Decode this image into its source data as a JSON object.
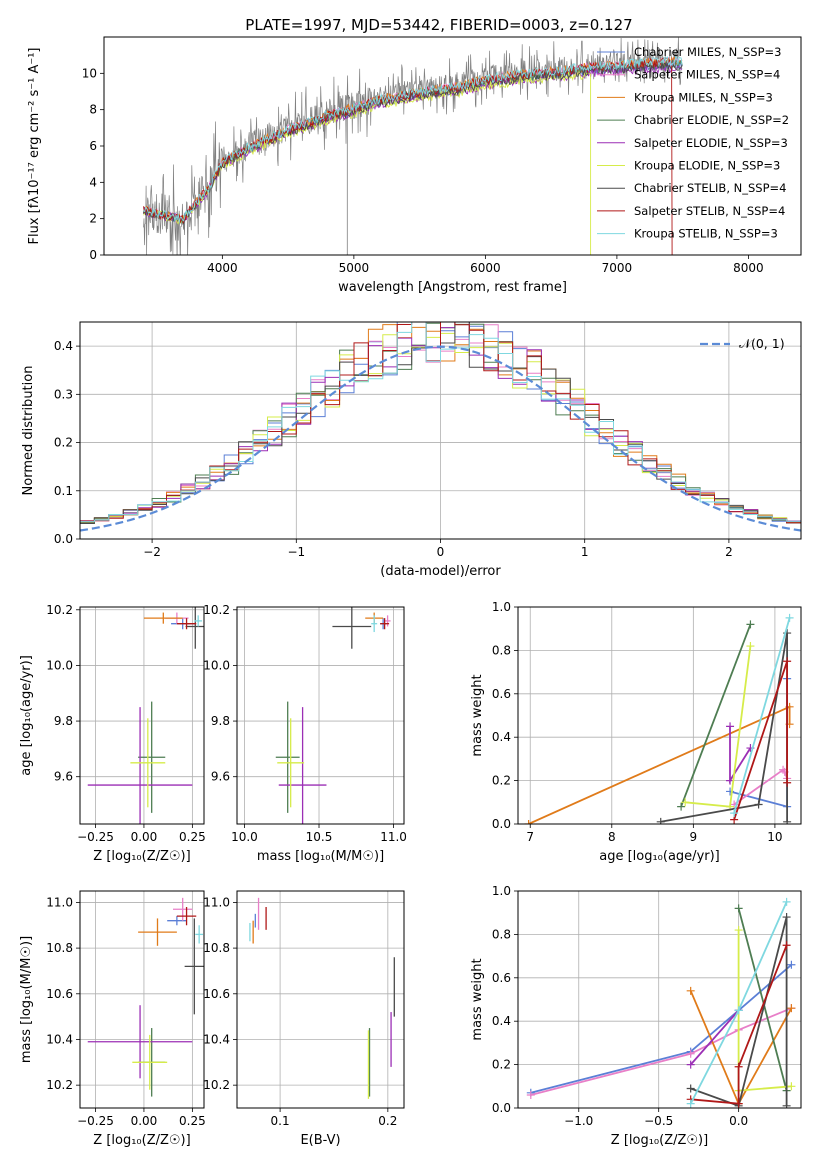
{
  "page_title": "PLATE=1997, MJD=53442, FIBERID=0003, z=0.127",
  "colors": {
    "Chabrier MILES": "#5b7fd6",
    "Salpeter MILES": "#e87fc8",
    "Kroupa MILES": "#e07b1a",
    "Chabrier ELODIE": "#4e7d52",
    "Salpeter ELODIE": "#9b2fb5",
    "Kroupa ELODIE": "#d6ec4a",
    "Chabrier STELIB": "#4a4a4a",
    "Salpeter STELIB": "#b01818",
    "Kroupa STELIB": "#7fd8e0",
    "data": "#808080",
    "normal": "#5b8bd6"
  },
  "chart_data": [
    {
      "id": "spectrum",
      "type": "line",
      "title": "PLATE=1997, MJD=53442, FIBERID=0003, z=0.127",
      "xlabel": "wavelength [Angstrom, rest frame]",
      "ylabel": "Flux [fλ10⁻¹⁷ erg cm⁻² s⁻¹ A⁻¹]",
      "xlim": [
        3100,
        8400
      ],
      "ylim": [
        0,
        12
      ],
      "xticks": [
        4000,
        5000,
        6000,
        7000,
        8000
      ],
      "yticks": [
        0,
        2,
        4,
        6,
        8,
        10
      ],
      "grid": false,
      "legend_position": "right",
      "legend": [
        "Chabrier MILES, N_SSP=3",
        "Salpeter MILES, N_SSP=4",
        "Kroupa MILES, N_SSP=3",
        "Chabrier ELODIE, N_SSP=2",
        "Salpeter ELODIE, N_SSP=3",
        "Kroupa ELODIE, N_SSP=3",
        "Chabrier STELIB, N_SSP=4",
        "Salpeter STELIB, N_SSP=4",
        "Kroupa STELIB, N_SSP=3"
      ],
      "continuum_x": [
        3400,
        3700,
        3900,
        4000,
        4200,
        4500,
        4800,
        5000,
        5200,
        5500,
        5800,
        6000,
        6300,
        6600,
        6800,
        7000,
        7200,
        7400,
        7500
      ],
      "continuum_y": [
        2.5,
        2.0,
        3.8,
        5.2,
        6.0,
        7.0,
        7.8,
        8.2,
        8.7,
        9.1,
        9.4,
        9.8,
        10.1,
        10.3,
        10.5,
        10.6,
        10.7,
        10.8,
        10.8
      ]
    },
    {
      "id": "residuals",
      "type": "line",
      "xlabel": "(data-model)/error",
      "ylabel": "Normed distribution",
      "xlim": [
        -2.5,
        2.5
      ],
      "ylim": [
        0,
        0.45
      ],
      "xticks": [
        -2,
        -1,
        0,
        1,
        2
      ],
      "yticks": [
        0.0,
        0.1,
        0.2,
        0.3,
        0.4
      ],
      "grid": true,
      "legend_position": "upper-right",
      "legend": [
        "𝒩(0, 1)"
      ],
      "normal_mean": 0,
      "normal_sigma": 1,
      "hist_bin_width": 0.1,
      "hist_bins": 50
    },
    {
      "id": "age-vs-Z",
      "type": "scatter",
      "xlabel": "Z [log₁₀(Z/Z☉)]",
      "ylabel": "age  [log₁₀(age/yr)]",
      "xlim": [
        -0.33,
        0.31
      ],
      "ylim": [
        9.43,
        10.21
      ],
      "xticks": [
        -0.25,
        0.0,
        0.25
      ],
      "yticks": [
        9.6,
        9.8,
        10.0,
        10.2
      ],
      "grid": true,
      "points": [
        {
          "model": "Chabrier MILES",
          "x": 0.2,
          "y": 10.15,
          "xerr": 0.06,
          "yerr": 0.02
        },
        {
          "model": "Salpeter MILES",
          "x": 0.17,
          "y": 10.17,
          "xerr": 0.06,
          "yerr": 0.02
        },
        {
          "model": "Kroupa MILES",
          "x": 0.1,
          "y": 10.17,
          "xerr": 0.1,
          "yerr": 0.02
        },
        {
          "model": "Chabrier ELODIE",
          "x": 0.04,
          "y": 9.67,
          "xerr": 0.07,
          "yerr": 0.2
        },
        {
          "model": "Salpeter ELODIE",
          "x": -0.02,
          "y": 9.57,
          "xerr": 0.27,
          "yerr": 0.28
        },
        {
          "model": "Kroupa ELODIE",
          "x": 0.02,
          "y": 9.65,
          "xerr": 0.09,
          "yerr": 0.16
        },
        {
          "model": "Chabrier STELIB",
          "x": 0.265,
          "y": 10.14,
          "xerr": 0.05,
          "yerr": 0.08
        },
        {
          "model": "Salpeter STELIB",
          "x": 0.22,
          "y": 10.15,
          "xerr": 0.05,
          "yerr": 0.02
        },
        {
          "model": "Kroupa STELIB",
          "x": 0.28,
          "y": 10.16,
          "xerr": 0.02,
          "yerr": 0.02
        }
      ]
    },
    {
      "id": "age-vs-mass",
      "type": "scatter",
      "xlabel": "mass [log₁₀(M/M☉)]",
      "ylabel": "",
      "xlim": [
        9.95,
        11.07
      ],
      "ylim": [
        9.43,
        10.21
      ],
      "xticks": [
        10.0,
        10.5,
        11.0
      ],
      "yticks": [
        9.6,
        9.8,
        10.0,
        10.2
      ],
      "grid": true,
      "points": [
        {
          "model": "Chabrier MILES",
          "x": 10.93,
          "y": 10.15,
          "xerr": 0.02,
          "yerr": 0.02
        },
        {
          "model": "Salpeter MILES",
          "x": 10.96,
          "y": 10.16,
          "xerr": 0.02,
          "yerr": 0.02
        },
        {
          "model": "Kroupa MILES",
          "x": 10.87,
          "y": 10.17,
          "xerr": 0.06,
          "yerr": 0.02
        },
        {
          "model": "Chabrier ELODIE",
          "x": 10.29,
          "y": 9.67,
          "xerr": 0.08,
          "yerr": 0.2
        },
        {
          "model": "Salpeter ELODIE",
          "x": 10.39,
          "y": 9.57,
          "xerr": 0.16,
          "yerr": 0.28
        },
        {
          "model": "Kroupa ELODIE",
          "x": 10.31,
          "y": 9.65,
          "xerr": 0.09,
          "yerr": 0.16
        },
        {
          "model": "Chabrier STELIB",
          "x": 10.72,
          "y": 10.14,
          "xerr": 0.13,
          "yerr": 0.08
        },
        {
          "model": "Salpeter STELIB",
          "x": 10.94,
          "y": 10.15,
          "xerr": 0.03,
          "yerr": 0.02
        },
        {
          "model": "Kroupa STELIB",
          "x": 10.87,
          "y": 10.15,
          "xerr": 0.02,
          "yerr": 0.03
        }
      ]
    },
    {
      "id": "massweight-vs-age",
      "type": "line",
      "xlabel": "age  [log₁₀(age/yr)]",
      "ylabel": "mass weight",
      "xlim": [
        6.85,
        10.32
      ],
      "ylim": [
        0,
        1
      ],
      "xticks": [
        7,
        8,
        9,
        10
      ],
      "yticks": [
        0.0,
        0.2,
        0.4,
        0.6,
        0.8,
        1.0
      ],
      "grid": true,
      "series": [
        {
          "model": "Chabrier MILES",
          "x": [
            9.45,
            10.15,
            10.15
          ],
          "y": [
            0.15,
            0.08,
            0.67
          ]
        },
        {
          "model": "Salpeter MILES",
          "x": [
            9.5,
            10.1,
            10.12,
            10.15
          ],
          "y": [
            0.09,
            0.25,
            0.24,
            0.21
          ]
        },
        {
          "model": "Kroupa MILES",
          "x": [
            6.98,
            10.18,
            10.18
          ],
          "y": [
            0.0,
            0.54,
            0.46
          ]
        },
        {
          "model": "Chabrier ELODIE",
          "x": [
            8.85,
            9.7
          ],
          "y": [
            0.08,
            0.92
          ]
        },
        {
          "model": "Salpeter ELODIE",
          "x": [
            9.45,
            9.45,
            9.7
          ],
          "y": [
            0.45,
            0.2,
            0.35
          ]
        },
        {
          "model": "Kroupa ELODIE",
          "x": [
            8.9,
            9.45,
            9.7
          ],
          "y": [
            0.1,
            0.08,
            0.82
          ]
        },
        {
          "model": "Chabrier STELIB",
          "x": [
            8.6,
            9.8,
            10.15,
            10.15
          ],
          "y": [
            0.01,
            0.09,
            0.88,
            0.01
          ]
        },
        {
          "model": "Salpeter STELIB",
          "x": [
            9.5,
            10.15,
            10.15
          ],
          "y": [
            0.02,
            0.75,
            0.19
          ]
        },
        {
          "model": "Kroupa STELIB",
          "x": [
            9.5,
            10.18
          ],
          "y": [
            0.05,
            0.95
          ]
        }
      ]
    },
    {
      "id": "mass-vs-Z",
      "type": "scatter",
      "xlabel": "Z [log₁₀(Z/Z☉)]",
      "ylabel": "mass [log₁₀(M/M☉)]",
      "xlim": [
        -0.33,
        0.31
      ],
      "ylim": [
        10.1,
        11.05
      ],
      "xticks": [
        -0.25,
        0.0,
        0.25
      ],
      "yticks": [
        10.2,
        10.4,
        10.6,
        10.8,
        11.0
      ],
      "grid": true,
      "points": [
        {
          "model": "Chabrier MILES",
          "x": 0.17,
          "y": 10.92,
          "xerr": 0.05,
          "yerr": 0.02
        },
        {
          "model": "Salpeter MILES",
          "x": 0.2,
          "y": 10.97,
          "xerr": 0.05,
          "yerr": 0.05
        },
        {
          "model": "Kroupa MILES",
          "x": 0.07,
          "y": 10.87,
          "xerr": 0.1,
          "yerr": 0.06
        },
        {
          "model": "Chabrier ELODIE",
          "x": 0.04,
          "y": 10.3,
          "xerr": 0.07,
          "yerr": 0.15
        },
        {
          "model": "Salpeter ELODIE",
          "x": -0.02,
          "y": 10.39,
          "xerr": 0.27,
          "yerr": 0.16
        },
        {
          "model": "Kroupa ELODIE",
          "x": 0.03,
          "y": 10.3,
          "xerr": 0.09,
          "yerr": 0.12
        },
        {
          "model": "Chabrier STELIB",
          "x": 0.26,
          "y": 10.72,
          "xerr": 0.05,
          "yerr": 0.21
        },
        {
          "model": "Salpeter STELIB",
          "x": 0.22,
          "y": 10.94,
          "xerr": 0.05,
          "yerr": 0.04
        },
        {
          "model": "Kroupa STELIB",
          "x": 0.285,
          "y": 10.86,
          "xerr": 0.02,
          "yerr": 0.04
        }
      ]
    },
    {
      "id": "mass-vs-ebv",
      "type": "scatter",
      "xlabel": "E(B-V)",
      "ylabel": "",
      "xlim": [
        0.06,
        0.215
      ],
      "ylim": [
        10.1,
        11.05
      ],
      "xticks": [
        0.1,
        0.2
      ],
      "yticks": [
        10.2,
        10.4,
        10.6,
        10.8,
        11.0
      ],
      "grid": true,
      "points": [
        {
          "model": "Chabrier MILES",
          "x": 0.077,
          "y": 10.92,
          "xerr": 0,
          "yerr": 0.03
        },
        {
          "model": "Salpeter MILES",
          "x": 0.08,
          "y": 10.95,
          "xerr": 0,
          "yerr": 0.07
        },
        {
          "model": "Kroupa MILES",
          "x": 0.075,
          "y": 10.87,
          "xerr": 0,
          "yerr": 0.05
        },
        {
          "model": "Chabrier ELODIE",
          "x": 0.183,
          "y": 10.3,
          "xerr": 0,
          "yerr": 0.15
        },
        {
          "model": "Salpeter ELODIE",
          "x": 0.203,
          "y": 10.4,
          "xerr": 0,
          "yerr": 0.12
        },
        {
          "model": "Kroupa ELODIE",
          "x": 0.182,
          "y": 10.29,
          "xerr": 0,
          "yerr": 0.15
        },
        {
          "model": "Chabrier STELIB",
          "x": 0.206,
          "y": 10.63,
          "xerr": 0,
          "yerr": 0.13
        },
        {
          "model": "Salpeter STELIB",
          "x": 0.087,
          "y": 10.93,
          "xerr": 0,
          "yerr": 0.05
        },
        {
          "model": "Kroupa STELIB",
          "x": 0.072,
          "y": 10.87,
          "xerr": 0,
          "yerr": 0.04
        }
      ]
    },
    {
      "id": "massweight-vs-Z",
      "type": "line",
      "xlabel": "Z [log₁₀(Z/Z☉)]",
      "ylabel": "mass weight",
      "xlim": [
        -1.38,
        0.39
      ],
      "ylim": [
        0,
        1
      ],
      "xticks": [
        -1.0,
        -0.5,
        0.0
      ],
      "yticks": [
        0.0,
        0.2,
        0.4,
        0.6,
        0.8,
        1.0
      ],
      "grid": true,
      "series": [
        {
          "model": "Chabrier MILES",
          "x": [
            -1.3,
            -0.3,
            0.0,
            0.33
          ],
          "y": [
            0.07,
            0.26,
            0.45,
            0.66
          ]
        },
        {
          "model": "Salpeter MILES",
          "x": [
            -1.3,
            -0.3,
            0.0,
            0.33
          ],
          "y": [
            0.06,
            0.25,
            0.36,
            0.46
          ]
        },
        {
          "model": "Kroupa MILES",
          "x": [
            -0.3,
            0.0,
            0.33
          ],
          "y": [
            0.54,
            0.02,
            0.46
          ]
        },
        {
          "model": "Chabrier ELODIE",
          "x": [
            0.0,
            0.3
          ],
          "y": [
            0.92,
            0.08
          ]
        },
        {
          "model": "Salpeter ELODIE",
          "x": [
            -0.3,
            0.0
          ],
          "y": [
            0.2,
            0.45
          ]
        },
        {
          "model": "Kroupa ELODIE",
          "x": [
            0.0,
            0.0,
            0.33
          ],
          "y": [
            0.82,
            0.08,
            0.1
          ]
        },
        {
          "model": "Chabrier STELIB",
          "x": [
            -0.3,
            0.0,
            0.3,
            0.3
          ],
          "y": [
            0.09,
            0.01,
            0.88,
            0.01
          ]
        },
        {
          "model": "Salpeter STELIB",
          "x": [
            -0.3,
            0.0,
            0.0,
            0.3
          ],
          "y": [
            0.04,
            0.02,
            0.19,
            0.75
          ]
        },
        {
          "model": "Kroupa STELIB",
          "x": [
            -0.3,
            0.0,
            0.3
          ],
          "y": [
            0.02,
            0.45,
            0.95
          ]
        }
      ]
    }
  ]
}
